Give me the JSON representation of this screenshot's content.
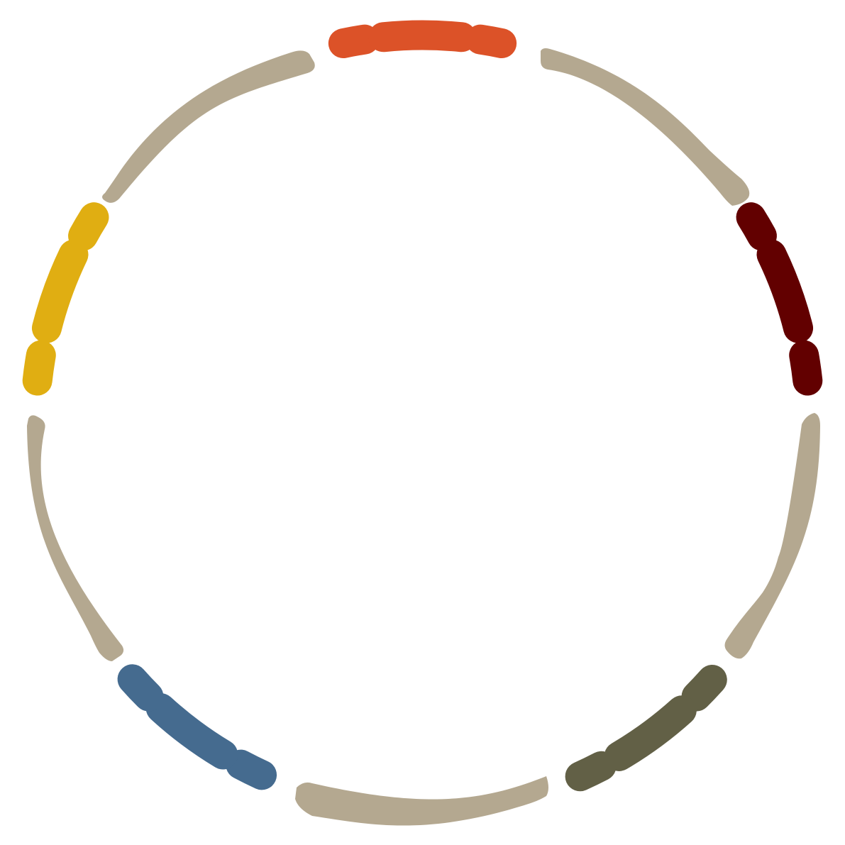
{
  "palette": {
    "background": "#ffffff",
    "connector": "#b4a890",
    "orange": "#dc5228",
    "dark_red": "#620000",
    "olive": "#626046",
    "blue": "#456b8f",
    "mustard": "#e0ae12"
  },
  "groups": [
    {
      "id": "top",
      "color_key": "orange",
      "segments": 3
    },
    {
      "id": "right",
      "color_key": "dark_red",
      "segments": 3
    },
    {
      "id": "lower-right",
      "color_key": "olive",
      "segments": 3
    },
    {
      "id": "lower-left",
      "color_key": "blue",
      "segments": 3
    },
    {
      "id": "left",
      "color_key": "mustard",
      "segments": 3
    }
  ],
  "connectors": 5
}
